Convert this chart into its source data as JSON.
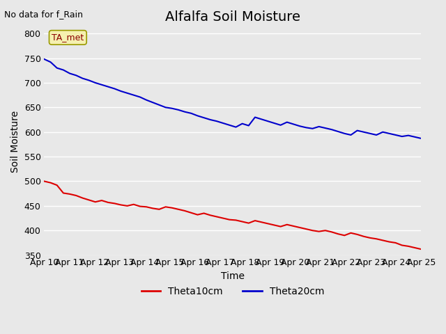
{
  "title": "Alfalfa Soil Moisture",
  "ylabel": "Soil Moisture",
  "xlabel": "Time",
  "top_left_text": "No data for f_Rain",
  "annotation_box": "TA_met",
  "ylim": [
    350,
    810
  ],
  "yticks": [
    350,
    400,
    450,
    500,
    550,
    600,
    650,
    700,
    750,
    800
  ],
  "xtick_labels": [
    "Apr 10",
    "Apr 11",
    "Apr 12",
    "Apr 13",
    "Apr 14",
    "Apr 15",
    "Apr 16",
    "Apr 17",
    "Apr 18",
    "Apr 19",
    "Apr 20",
    "Apr 21",
    "Apr 22",
    "Apr 23",
    "Apr 24",
    "Apr 25"
  ],
  "bg_color": "#e8e8e8",
  "plot_bg_color": "#e8e8e8",
  "line_color_red": "#dd0000",
  "line_color_blue": "#0000cc",
  "legend_labels": [
    "Theta10cm",
    "Theta20cm"
  ],
  "title_fontsize": 14,
  "axis_label_fontsize": 10,
  "tick_fontsize": 9,
  "theta10_x": [
    0,
    0.5,
    1,
    1.5,
    2,
    2.5,
    3,
    3.5,
    4,
    4.5,
    5,
    5.5,
    6,
    6.5,
    7,
    7.5,
    8,
    8.5,
    9,
    9.5,
    10,
    10.5,
    11,
    11.5,
    12,
    12.5,
    13,
    13.5,
    14,
    14.5,
    15,
    15.5,
    16,
    16.5,
    17,
    17.5,
    18,
    18.5,
    19,
    19.5,
    20,
    20.5,
    21,
    21.5,
    22,
    22.5,
    23,
    23.5,
    24,
    24.5,
    25,
    25.5,
    26,
    26.5,
    27,
    27.5,
    28,
    28.5,
    29,
    29.5
  ],
  "theta10_y": [
    500,
    497,
    492,
    476,
    474,
    471,
    466,
    462,
    458,
    461,
    457,
    455,
    452,
    450,
    453,
    449,
    448,
    445,
    443,
    448,
    446,
    443,
    440,
    436,
    432,
    435,
    431,
    428,
    425,
    422,
    421,
    418,
    415,
    420,
    417,
    414,
    411,
    408,
    412,
    409,
    406,
    403,
    400,
    398,
    400,
    397,
    393,
    390,
    395,
    392,
    388,
    385,
    383,
    380,
    377,
    375,
    370,
    368,
    365,
    362
  ],
  "theta20_x": [
    0,
    0.5,
    1,
    1.5,
    2,
    2.5,
    3,
    3.5,
    4,
    4.5,
    5,
    5.5,
    6,
    6.5,
    7,
    7.5,
    8,
    8.5,
    9,
    9.5,
    10,
    10.5,
    11,
    11.5,
    12,
    12.5,
    13,
    13.5,
    14,
    14.5,
    15,
    15.5,
    16,
    16.5,
    17,
    17.5,
    18,
    18.5,
    19,
    19.5,
    20,
    20.5,
    21,
    21.5,
    22,
    22.5,
    23,
    23.5,
    24,
    24.5,
    25,
    25.5,
    26,
    26.5,
    27,
    27.5,
    28,
    28.5,
    29,
    29.5
  ],
  "theta20_y": [
    748,
    742,
    730,
    726,
    719,
    715,
    709,
    705,
    700,
    696,
    692,
    688,
    683,
    679,
    675,
    671,
    665,
    660,
    655,
    650,
    648,
    645,
    641,
    638,
    633,
    629,
    625,
    622,
    618,
    614,
    610,
    617,
    613,
    630,
    626,
    622,
    618,
    614,
    620,
    616,
    612,
    609,
    607,
    611,
    608,
    605,
    601,
    597,
    594,
    603,
    600,
    597,
    594,
    600,
    597,
    594,
    591,
    593,
    590,
    587
  ]
}
